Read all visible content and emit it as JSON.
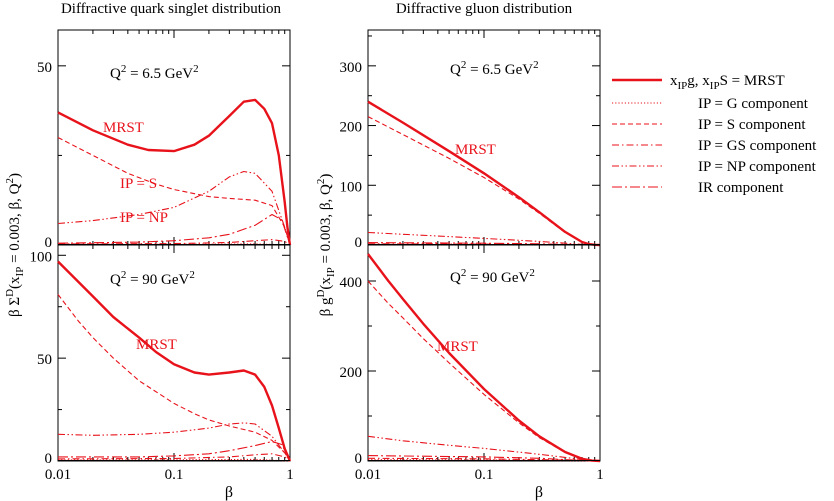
{
  "colors": {
    "curve": "#e8121b",
    "axis": "#000000"
  },
  "legend": {
    "title": "x_IP g, x_IP S = MRST",
    "entries": [
      {
        "label": "IP = G component",
        "style": "dotted"
      },
      {
        "label": "IP = S component",
        "style": "dashed"
      },
      {
        "label": "IP = GS component",
        "style": "dashdot"
      },
      {
        "label": "IP = NP component",
        "style": "dashdotdot"
      },
      {
        "label": "IR component",
        "style": "longdashdot"
      }
    ]
  },
  "chart_data": [
    {
      "id": "quark_top",
      "type": "line",
      "title": "Diffractive quark singlet distribution",
      "q2_label": "Q² = 6.5 GeV²",
      "xlabel": "β",
      "ylabel": "β Σ^D(x_IP = 0.003, β, Q²)",
      "xscale": "log",
      "xlim": [
        0.01,
        1
      ],
      "ylim": [
        0,
        60
      ],
      "yticks": [
        "0",
        "50"
      ],
      "xticks": [
        "0.01",
        "0.1",
        "1"
      ],
      "annotations": [
        "MRST",
        "IP = S",
        "IP = NP"
      ],
      "series": [
        {
          "name": "MRST",
          "style": "solid",
          "x": [
            0.01,
            0.02,
            0.04,
            0.06,
            0.1,
            0.15,
            0.2,
            0.3,
            0.4,
            0.5,
            0.6,
            0.7,
            0.8,
            0.9,
            0.95,
            1.0
          ],
          "y": [
            37,
            32,
            28,
            26.5,
            26.2,
            28,
            30.5,
            36,
            40,
            40.5,
            38,
            34,
            25,
            12,
            5,
            0
          ]
        },
        {
          "name": "IP = S component",
          "style": "dashed",
          "x": [
            0.01,
            0.02,
            0.04,
            0.07,
            0.1,
            0.2,
            0.3,
            0.5,
            0.7,
            0.9,
            1.0
          ],
          "y": [
            30,
            25,
            20,
            17,
            15.5,
            13.5,
            13,
            12.5,
            11,
            5,
            0
          ]
        },
        {
          "name": "IP = NP component",
          "style": "dashdotdot",
          "x": [
            0.01,
            0.02,
            0.05,
            0.1,
            0.2,
            0.3,
            0.4,
            0.5,
            0.7,
            0.9,
            1.0
          ],
          "y": [
            6,
            6.8,
            8.5,
            10.5,
            15,
            19,
            20.5,
            20,
            15,
            5,
            0
          ]
        },
        {
          "name": "IR component",
          "style": "longdashdot",
          "x": [
            0.01,
            0.05,
            0.1,
            0.2,
            0.3,
            0.5,
            0.7,
            0.85,
            1.0
          ],
          "y": [
            0.5,
            0.8,
            1.2,
            2,
            3,
            5.5,
            8.5,
            7,
            0
          ]
        },
        {
          "name": "IP = GS component",
          "style": "dashdot",
          "x": [
            0.01,
            0.1,
            0.3,
            0.5,
            0.7,
            0.9,
            1.0
          ],
          "y": [
            0.3,
            0.4,
            0.7,
            1.2,
            1.5,
            1.0,
            0
          ]
        },
        {
          "name": "IP = G component",
          "style": "dotted",
          "x": [
            0.01,
            0.1,
            0.5,
            1.0
          ],
          "y": [
            0.2,
            0.2,
            0.3,
            0
          ]
        }
      ]
    },
    {
      "id": "quark_bottom",
      "type": "line",
      "q2_label": "Q² = 90 GeV²",
      "xlabel": "β",
      "xscale": "log",
      "xlim": [
        0.01,
        1
      ],
      "ylim": [
        0,
        105
      ],
      "yticks": [
        "0",
        "50",
        "100"
      ],
      "xticks": [
        "0.01",
        "0.1",
        "1"
      ],
      "annotations": [
        "MRST"
      ],
      "series": [
        {
          "name": "MRST",
          "style": "solid",
          "x": [
            0.01,
            0.02,
            0.03,
            0.05,
            0.07,
            0.1,
            0.15,
            0.2,
            0.3,
            0.4,
            0.5,
            0.6,
            0.7,
            0.8,
            0.9,
            1.0
          ],
          "y": [
            97,
            80,
            70,
            60,
            53,
            47,
            43,
            42,
            43,
            44,
            42,
            36,
            27,
            16,
            6,
            0
          ]
        },
        {
          "name": "IP = S component",
          "style": "dashed",
          "x": [
            0.01,
            0.015,
            0.02,
            0.03,
            0.05,
            0.1,
            0.15,
            0.2,
            0.3,
            0.5,
            0.7,
            0.9,
            1.0
          ],
          "y": [
            81,
            68,
            60,
            50,
            39,
            28,
            23,
            20,
            17,
            14,
            10,
            4,
            0
          ]
        },
        {
          "name": "IP = NP component",
          "style": "dashdotdot",
          "x": [
            0.01,
            0.02,
            0.05,
            0.1,
            0.2,
            0.3,
            0.4,
            0.5,
            0.7,
            0.9,
            1.0
          ],
          "y": [
            13,
            12.5,
            13,
            14,
            16,
            18,
            18.5,
            18,
            12,
            4,
            0
          ]
        },
        {
          "name": "IR component",
          "style": "longdashdot",
          "x": [
            0.01,
            0.05,
            0.1,
            0.2,
            0.3,
            0.5,
            0.7,
            0.85,
            1.0
          ],
          "y": [
            2,
            2,
            2.5,
            3.5,
            5,
            7.5,
            9.5,
            8,
            0
          ]
        },
        {
          "name": "IP = GS component",
          "style": "dashdot",
          "x": [
            0.01,
            0.1,
            0.3,
            0.5,
            0.7,
            0.9,
            1.0
          ],
          "y": [
            1,
            1.2,
            2,
            3,
            3.5,
            2,
            0
          ]
        },
        {
          "name": "IP = G component",
          "style": "dotted",
          "x": [
            0.01,
            0.1,
            0.5,
            1.0
          ],
          "y": [
            0.5,
            0.6,
            0.8,
            0
          ]
        }
      ]
    },
    {
      "id": "gluon_top",
      "type": "line",
      "title": "Diffractive gluon distribution",
      "q2_label": "Q² = 6.5 GeV²",
      "xlabel": "β",
      "ylabel": "β g^D(x_IP = 0.003, β, Q²)",
      "xscale": "log",
      "xlim": [
        0.01,
        1
      ],
      "ylim": [
        0,
        360
      ],
      "yticks": [
        "0",
        "100",
        "200",
        "300"
      ],
      "xticks": [
        "0.01",
        "0.1",
        "1"
      ],
      "annotations": [
        "MRST"
      ],
      "series": [
        {
          "name": "MRST",
          "style": "solid",
          "x": [
            0.01,
            0.02,
            0.05,
            0.1,
            0.2,
            0.3,
            0.5,
            0.7,
            0.8,
            0.9,
            1.0
          ],
          "y": [
            240,
            205,
            157,
            120,
            80,
            55,
            22,
            5,
            1.5,
            0.3,
            0
          ]
        },
        {
          "name": "IP = S component",
          "style": "dashed",
          "x": [
            0.01,
            0.02,
            0.05,
            0.1,
            0.2,
            0.3,
            0.5,
            0.7,
            0.8,
            0.9,
            1.0
          ],
          "y": [
            215,
            185,
            145,
            113,
            77,
            53,
            21,
            5,
            1.5,
            0.3,
            0
          ]
        },
        {
          "name": "IP = NP component",
          "style": "dashdotdot",
          "x": [
            0.01,
            0.05,
            0.1,
            0.3,
            0.5,
            0.7,
            1.0
          ],
          "y": [
            21,
            14,
            11,
            6,
            3,
            1,
            0
          ]
        },
        {
          "name": "IR component",
          "style": "longdashdot",
          "x": [
            0.01,
            0.1,
            0.3,
            0.5,
            0.8,
            1.0
          ],
          "y": [
            4,
            3,
            2,
            1,
            0.3,
            0
          ]
        },
        {
          "name": "IP = GS component",
          "style": "dashdot",
          "x": [
            0.01,
            0.1,
            0.5,
            1.0
          ],
          "y": [
            2,
            1.5,
            0.5,
            0
          ]
        },
        {
          "name": "IP = G component",
          "style": "dotted",
          "x": [
            0.01,
            0.1,
            0.5,
            1.0
          ],
          "y": [
            1,
            0.8,
            0.3,
            0
          ]
        }
      ]
    },
    {
      "id": "gluon_bottom",
      "type": "line",
      "q2_label": "Q² = 90 GeV²",
      "xlabel": "β",
      "xscale": "log",
      "xlim": [
        0.01,
        1
      ],
      "ylim": [
        0,
        480
      ],
      "yticks": [
        "0",
        "200",
        "400"
      ],
      "xticks": [
        "0.01",
        "0.1",
        "1"
      ],
      "annotations": [
        "MRST"
      ],
      "series": [
        {
          "name": "MRST",
          "style": "solid",
          "x": [
            0.01,
            0.015,
            0.02,
            0.03,
            0.05,
            0.1,
            0.2,
            0.3,
            0.5,
            0.7,
            0.85,
            1.0
          ],
          "y": [
            460,
            400,
            360,
            305,
            240,
            160,
            90,
            55,
            20,
            5,
            1,
            0
          ]
        },
        {
          "name": "IP = S component",
          "style": "dashed",
          "x": [
            0.01,
            0.015,
            0.02,
            0.03,
            0.05,
            0.1,
            0.2,
            0.3,
            0.5,
            0.7,
            0.85,
            1.0
          ],
          "y": [
            400,
            350,
            318,
            272,
            218,
            148,
            85,
            52,
            19,
            5,
            1,
            0
          ]
        },
        {
          "name": "IP = NP component",
          "style": "dashdotdot",
          "x": [
            0.01,
            0.02,
            0.05,
            0.1,
            0.3,
            0.5,
            0.7,
            1.0
          ],
          "y": [
            55,
            45,
            35,
            28,
            15,
            8,
            3,
            0
          ]
        },
        {
          "name": "IR component",
          "style": "longdashdot",
          "x": [
            0.01,
            0.1,
            0.3,
            0.5,
            0.8,
            1.0
          ],
          "y": [
            12,
            9,
            6,
            3,
            1,
            0
          ]
        },
        {
          "name": "IP = GS component",
          "style": "dashdot",
          "x": [
            0.01,
            0.1,
            0.5,
            1.0
          ],
          "y": [
            6,
            5,
            2,
            0
          ]
        },
        {
          "name": "IP = G component",
          "style": "dotted",
          "x": [
            0.01,
            0.1,
            0.5,
            1.0
          ],
          "y": [
            3,
            2.5,
            1,
            0
          ]
        }
      ]
    }
  ]
}
